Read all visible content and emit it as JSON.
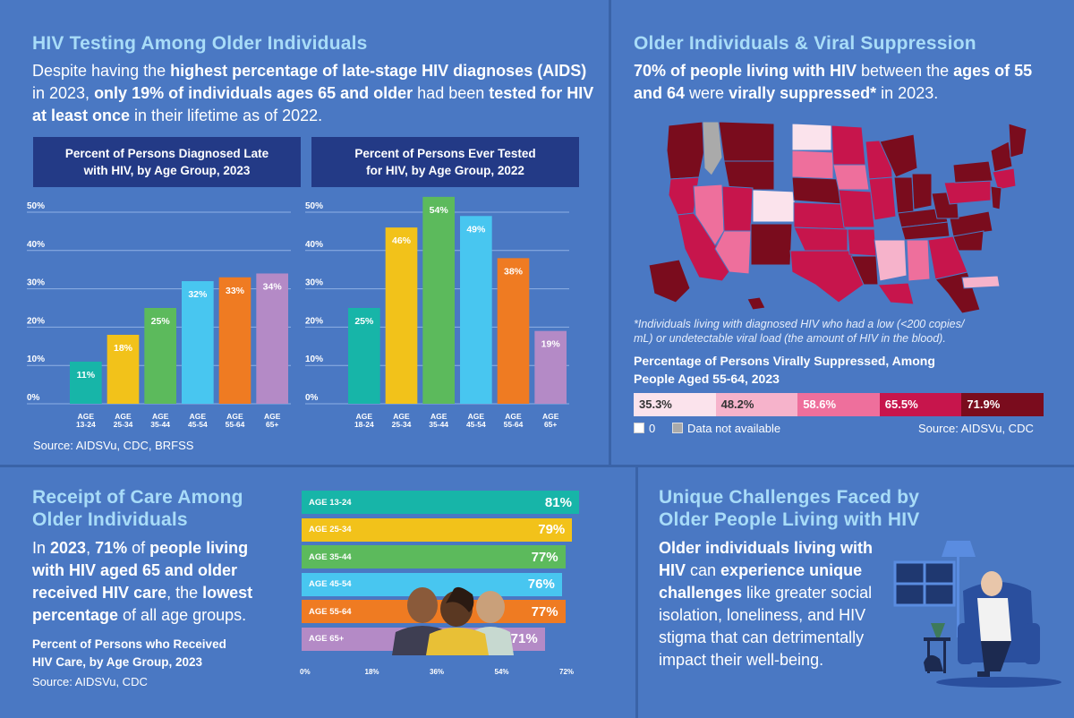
{
  "testing": {
    "title": "HIV Testing Among Older Individuals",
    "p1": "Despite having the ",
    "p1b": "highest percentage of late-stage HIV diagnoses (AIDS)",
    "p2": " in 2023, ",
    "p2b": "only 19% of individuals ages 65 and older",
    "p3": " had been ",
    "p3b": "tested for HIV at least once",
    "p4": " in their lifetime as of 2022.",
    "source": "Source: AIDSVu, CDC, BRFSS"
  },
  "chart_data": [
    {
      "type": "bar",
      "title": "Percent of Persons Diagnosed Late with HIV, by Age Group, 2023",
      "title_line1": "Percent of Persons Diagnosed Late",
      "title_line2": "with HIV, by Age Group, 2023",
      "categories": [
        "AGE 13-24",
        "AGE 25-34",
        "AGE 35-44",
        "AGE 45-54",
        "AGE 55-64",
        "AGE 65+"
      ],
      "cat_line1": [
        "AGE",
        "AGE",
        "AGE",
        "AGE",
        "AGE",
        "AGE"
      ],
      "cat_line2": [
        "13-24",
        "25-34",
        "35-44",
        "45-54",
        "55-64",
        "65+"
      ],
      "values": [
        11,
        18,
        25,
        32,
        33,
        34
      ],
      "value_labels": [
        "11%",
        "18%",
        "25%",
        "32%",
        "33%",
        "34%"
      ],
      "colors": [
        "#17b5a8",
        "#f2c21a",
        "#5cba5c",
        "#48c6f0",
        "#ef7b22",
        "#b48ac6"
      ],
      "yticks": [
        "0%",
        "10%",
        "20%",
        "30%",
        "40%",
        "50%"
      ],
      "ylim": [
        0,
        50
      ],
      "grid": true
    },
    {
      "type": "bar",
      "title": "Percent of Persons Ever Tested for HIV, by Age Group, 2022",
      "title_line1": "Percent of Persons Ever Tested",
      "title_line2": "for HIV, by Age Group, 2022",
      "categories": [
        "AGE 18-24",
        "AGE 25-34",
        "AGE 35-44",
        "AGE 45-54",
        "AGE 55-64",
        "AGE 65+"
      ],
      "cat_line1": [
        "AGE",
        "AGE",
        "AGE",
        "AGE",
        "AGE",
        "AGE"
      ],
      "cat_line2": [
        "18-24",
        "25-34",
        "35-44",
        "45-54",
        "55-64",
        "65+"
      ],
      "values": [
        25,
        46,
        54,
        49,
        38,
        19
      ],
      "value_labels": [
        "25%",
        "46%",
        "54%",
        "49%",
        "38%",
        "19%"
      ],
      "colors": [
        "#17b5a8",
        "#f2c21a",
        "#5cba5c",
        "#48c6f0",
        "#ef7b22",
        "#b48ac6"
      ],
      "yticks": [
        "0%",
        "10%",
        "20%",
        "30%",
        "40%",
        "50%"
      ],
      "ylim": [
        0,
        50
      ],
      "grid": true
    },
    {
      "type": "bar",
      "orientation": "horizontal",
      "title": "Percent of Persons who Received HIV Care, by Age Group, 2023",
      "categories": [
        "AGE 13-24",
        "AGE 25-34",
        "AGE 35-44",
        "AGE 45-54",
        "AGE 55-64",
        "AGE 65+"
      ],
      "values": [
        81,
        79,
        77,
        76,
        77,
        71
      ],
      "value_labels": [
        "81%",
        "79%",
        "77%",
        "76%",
        "77%",
        "71%"
      ],
      "colors": [
        "#17b5a8",
        "#f2c21a",
        "#5cba5c",
        "#48c6f0",
        "#ef7b22",
        "#b48ac6"
      ],
      "xticks": [
        "0%",
        "18%",
        "36%",
        "54%",
        "72%"
      ],
      "xlim": [
        0,
        72
      ]
    }
  ],
  "suppression": {
    "title": "Older Individuals & Viral Suppression",
    "p_b1": "70% of people living with HIV",
    "p_1": " between the ",
    "p_b2": "ages of 55 and 64",
    "p_2": " were ",
    "p_b3": "virally suppressed*",
    "p_3": " in 2023.",
    "footnote_line1": "*Individuals living with diagnosed HIV who had a low (<200 copies/",
    "footnote_line2": "mL) or undetectable viral load (the amount of HIV in the blood).",
    "legend_title_line1": "Percentage of Persons Virally Suppressed, Among",
    "legend_title_line2": "People Aged 55-64, 2023",
    "legend": [
      {
        "label": "35.3%",
        "color": "#fbe3ec",
        "text": "#333333"
      },
      {
        "label": "48.2%",
        "color": "#f6b3cb",
        "text": "#333333"
      },
      {
        "label": "58.6%",
        "color": "#ee6f9c",
        "text": "#ffffff"
      },
      {
        "label": "65.5%",
        "color": "#c7154c",
        "text": "#ffffff"
      },
      {
        "label": "71.9%",
        "color": "#7a0c1d",
        "text": "#ffffff"
      }
    ],
    "key_zero": "0",
    "key_na": "Data not available",
    "source": "Source: AIDSVu, CDC"
  },
  "care": {
    "title_line1": "Receipt of Care Among",
    "title_line2": "Older Individuals",
    "p_1": "In ",
    "p_b1": "2023",
    "p_2": ", ",
    "p_b2": "71%",
    "p_3": " of ",
    "p_b3": "people living with HIV aged 65 and older received HIV care",
    "p_4": ", the ",
    "p_b4": "lowest percentage",
    "p_5": " of all age groups.",
    "chart_title_line1": "Percent of Persons who Received",
    "chart_title_line2": "HIV Care, by Age Group, 2023",
    "source": "Source: AIDSVu, CDC"
  },
  "challenges": {
    "title_line1": "Unique Challenges Faced by",
    "title_line2": "Older People Living with HIV",
    "p_b1": "Older individuals living with HIV",
    "p_1": " can ",
    "p_b2": "experience unique challenges",
    "p_2": " like greater social isolation, loneliness, and HIV stigma that can detrimentally impact their well-being."
  }
}
